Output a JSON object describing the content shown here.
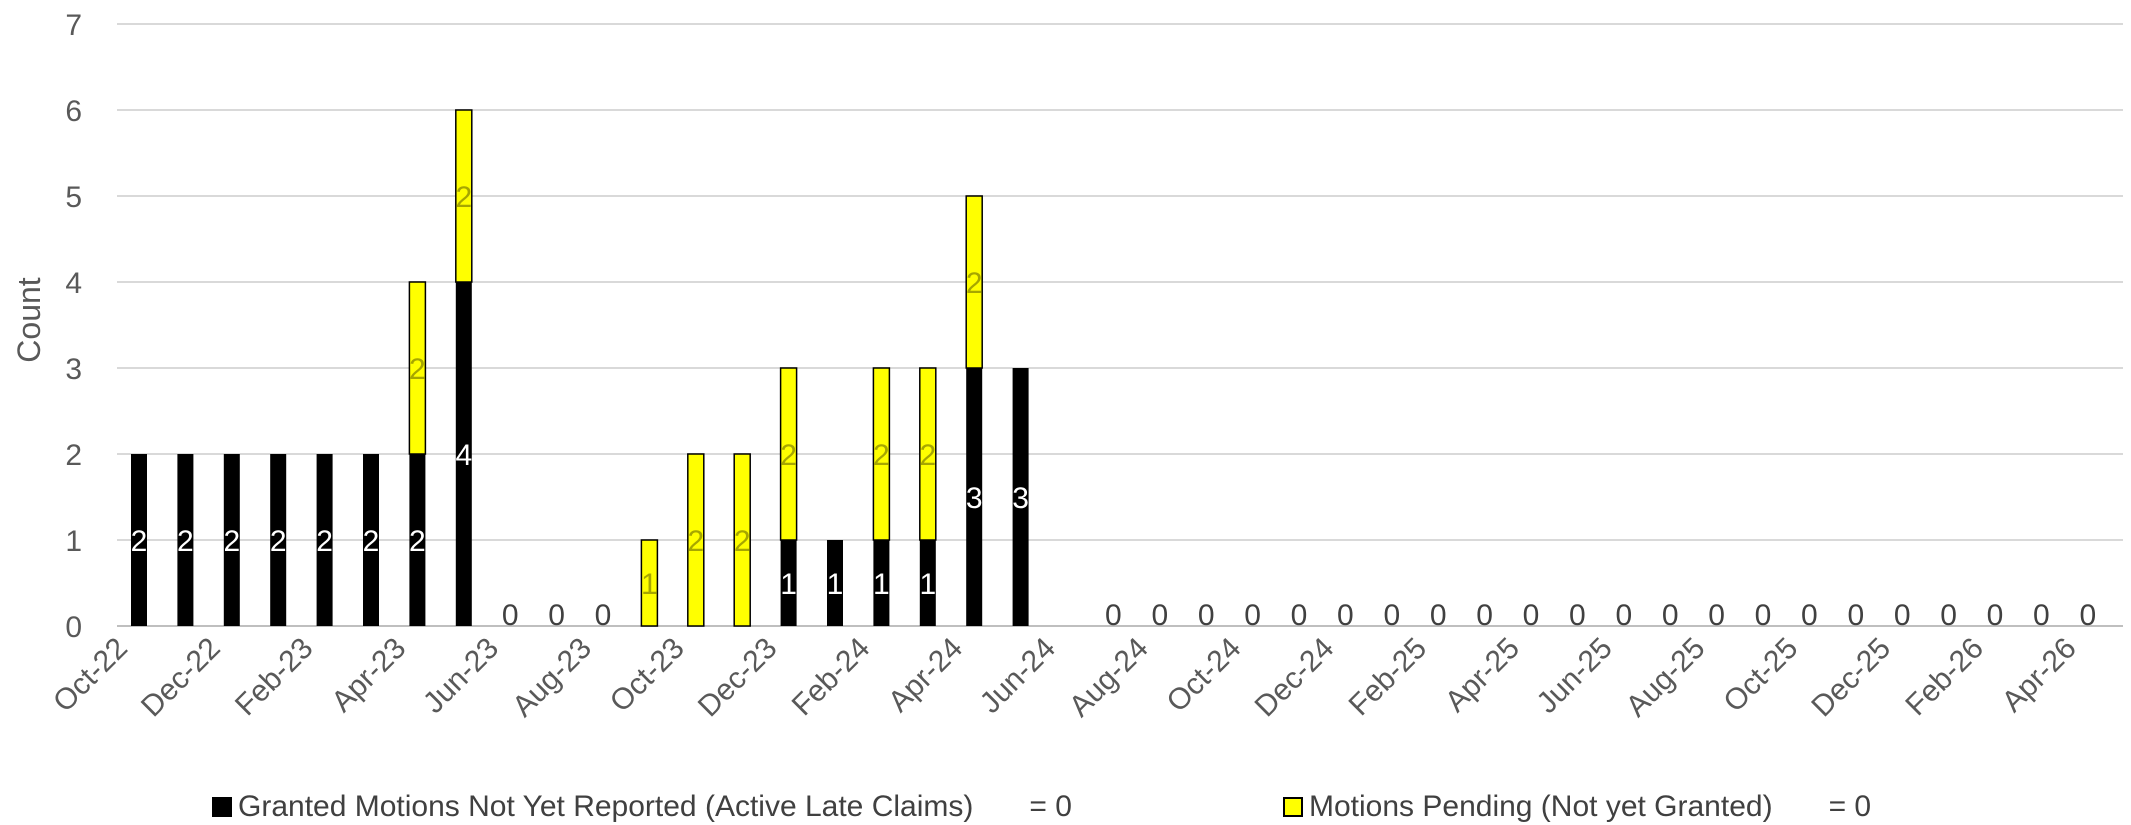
{
  "chart_data": {
    "type": "bar",
    "stacked": true,
    "ylabel": "Count",
    "ylim": [
      0,
      7
    ],
    "yticks": [
      0,
      1,
      2,
      3,
      4,
      5,
      6,
      7
    ],
    "grid": true,
    "categories": [
      "Oct-22",
      "Nov-22",
      "Dec-22",
      "Jan-23",
      "Feb-23",
      "Mar-23",
      "Apr-23",
      "May-23",
      "Jun-23",
      "Jul-23",
      "Aug-23",
      "Sep-23",
      "Oct-23",
      "Nov-23",
      "Dec-23",
      "Jan-24",
      "Feb-24",
      "Mar-24",
      "Apr-24",
      "May-24",
      "Jun-24",
      "Jul-24",
      "Aug-24",
      "Sep-24",
      "Oct-24",
      "Nov-24",
      "Dec-24",
      "Jan-25",
      "Feb-25",
      "Mar-25",
      "Apr-25",
      "May-25",
      "Jun-25",
      "Jul-25",
      "Aug-25",
      "Sep-25",
      "Oct-25",
      "Nov-25",
      "Dec-25",
      "Jan-26",
      "Feb-26",
      "Mar-26",
      "Apr-26"
    ],
    "x_tick_labels": [
      "Oct-22",
      "Dec-22",
      "Feb-23",
      "Apr-23",
      "Jun-23",
      "Aug-23",
      "Oct-23",
      "Dec-23",
      "Feb-24",
      "Apr-24",
      "Jun-24",
      "Aug-24",
      "Oct-24",
      "Dec-24",
      "Feb-25",
      "Apr-25",
      "Jun-25",
      "Aug-25",
      "Oct-25",
      "Dec-25",
      "Feb-26",
      "Apr-26"
    ],
    "series": [
      {
        "name": "Granted Motions Not Yet Reported (Active Late Claims)",
        "color": "#000000",
        "label_color": "#ffffff",
        "values": [
          2,
          2,
          2,
          2,
          2,
          2,
          2,
          4,
          0,
          0,
          0,
          0,
          0,
          0,
          1,
          1,
          1,
          1,
          3,
          3,
          0,
          0,
          0,
          0,
          0,
          0,
          0,
          0,
          0,
          0,
          0,
          0,
          0,
          0,
          0,
          0,
          0,
          0,
          0,
          0,
          0,
          0,
          0
        ]
      },
      {
        "name": "Motions Pending  (Not yet Granted)",
        "color": "#ffff00",
        "label_color": "#a6a600",
        "values": [
          0,
          0,
          0,
          0,
          0,
          0,
          2,
          2,
          0,
          0,
          0,
          1,
          2,
          2,
          2,
          0,
          2,
          2,
          2,
          0,
          0,
          0,
          0,
          0,
          0,
          0,
          0,
          0,
          0,
          0,
          0,
          0,
          0,
          0,
          0,
          0,
          0,
          0,
          0,
          0,
          0,
          0,
          0
        ]
      }
    ],
    "zero_labels_from_index": 8,
    "zero_labels_skip": [
      11,
      12,
      13,
      14,
      15,
      16,
      17,
      18,
      19,
      20
    ],
    "legend_position": "bottom",
    "legend": [
      {
        "label": "Granted Motions Not Yet Reported (Active Late Claims)",
        "suffix": "= 0"
      },
      {
        "label": "Motions Pending  (Not yet Granted)",
        "suffix": "= 0"
      }
    ]
  }
}
